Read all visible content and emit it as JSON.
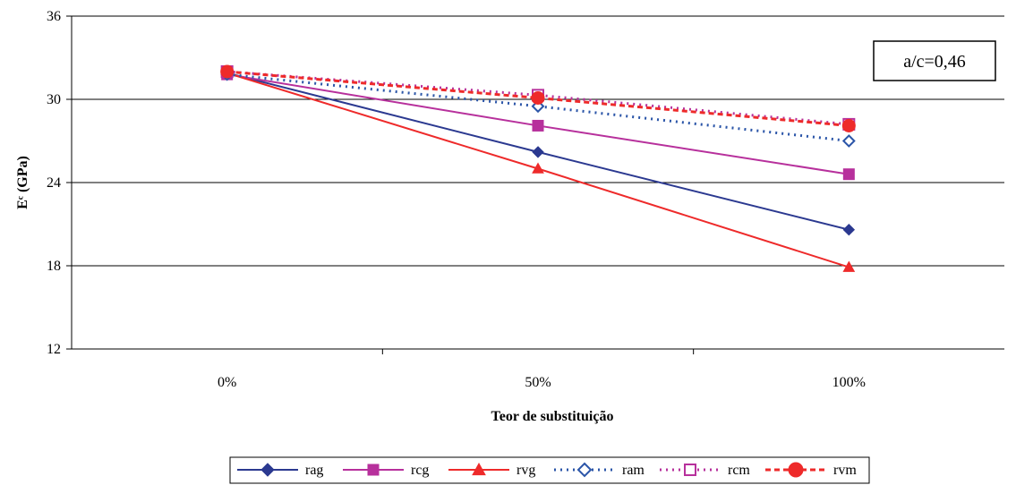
{
  "chart_data": {
    "type": "line",
    "categories": [
      "0%",
      "50%",
      "100%"
    ],
    "xlabel": "Teor de substituição",
    "ylabel": "Eᶜ (GPa)",
    "ylim": [
      12,
      36
    ],
    "yticks": [
      12,
      18,
      24,
      30,
      36
    ],
    "grid": true,
    "legend_position": "bottom",
    "annotation": "a/c=0,46",
    "series": [
      {
        "name": "rag",
        "values": [
          31.9,
          26.2,
          20.6
        ],
        "color": "#2B3990",
        "marker": "diamond",
        "filled": true,
        "dash": "solid"
      },
      {
        "name": "rcg",
        "values": [
          31.8,
          28.1,
          24.6
        ],
        "color": "#B7309C",
        "marker": "square",
        "filled": true,
        "dash": "solid"
      },
      {
        "name": "rvg",
        "values": [
          31.9,
          25.0,
          17.9
        ],
        "color": "#EE2A2A",
        "marker": "triangle",
        "filled": true,
        "dash": "solid"
      },
      {
        "name": "ram",
        "values": [
          31.8,
          29.5,
          27.0
        ],
        "color": "#2B55A8",
        "marker": "diamond",
        "filled": false,
        "dash": "dotted"
      },
      {
        "name": "rcm",
        "values": [
          32.0,
          30.3,
          28.2
        ],
        "color": "#B7309C",
        "marker": "square",
        "filled": false,
        "dash": "dotted"
      },
      {
        "name": "rvm",
        "values": [
          32.0,
          30.1,
          28.1
        ],
        "color": "#EE2A2A",
        "marker": "circle",
        "filled": true,
        "dash": "dashed"
      }
    ]
  }
}
